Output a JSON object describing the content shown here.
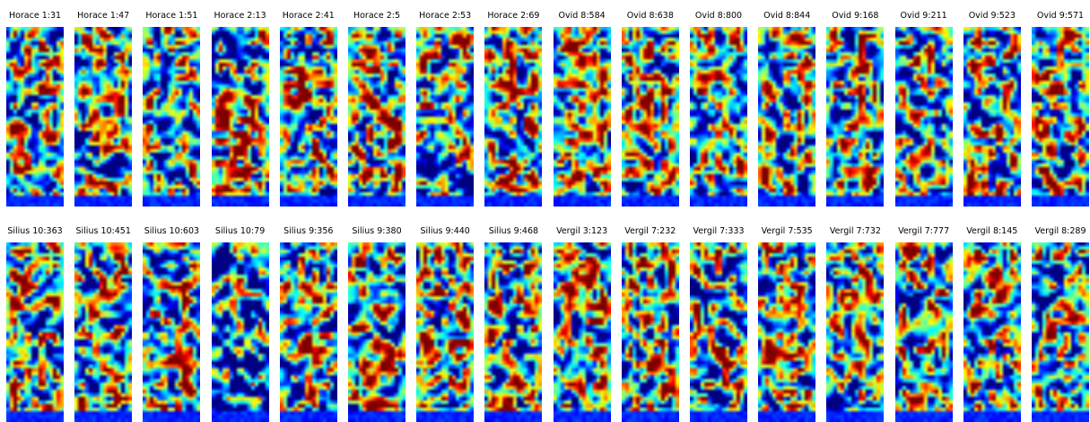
{
  "figure": {
    "colormap": "jet",
    "rows": [
      {
        "panels": [
          {
            "title": "Horace 1:31"
          },
          {
            "title": "Horace 1:47"
          },
          {
            "title": "Horace 1:51"
          },
          {
            "title": "Horace 2:13"
          },
          {
            "title": "Horace 2:41"
          },
          {
            "title": "Horace 2:5"
          },
          {
            "title": "Horace 2:53"
          },
          {
            "title": "Horace 2:69"
          },
          {
            "title": "Ovid 8:584"
          },
          {
            "title": "Ovid 8:638"
          },
          {
            "title": "Ovid 8:800"
          },
          {
            "title": "Ovid 8:844"
          },
          {
            "title": "Ovid 9:168"
          },
          {
            "title": "Ovid 9:211"
          },
          {
            "title": "Ovid 9:523"
          },
          {
            "title": "Ovid 9:571"
          }
        ]
      },
      {
        "panels": [
          {
            "title": "Silius 10:363"
          },
          {
            "title": "Silius 10:451"
          },
          {
            "title": "Silius 10:603"
          },
          {
            "title": "Silius 10:79"
          },
          {
            "title": "Silius 9:356"
          },
          {
            "title": "Silius 9:380"
          },
          {
            "title": "Silius 9:440"
          },
          {
            "title": "Silius 9:468"
          },
          {
            "title": "Vergil 3:123"
          },
          {
            "title": "Vergil 7:232"
          },
          {
            "title": "Vergil 7:333"
          },
          {
            "title": "Vergil 7:535"
          },
          {
            "title": "Vergil 7:732"
          },
          {
            "title": "Vergil 7:777"
          },
          {
            "title": "Vergil 8:145"
          },
          {
            "title": "Vergil 8:289"
          }
        ]
      }
    ]
  },
  "chart_data": {
    "type": "heatmap",
    "colormap": "jet",
    "panel_titles": [
      "Horace 1:31",
      "Horace 1:47",
      "Horace 1:51",
      "Horace 2:13",
      "Horace 2:41",
      "Horace 2:5",
      "Horace 2:53",
      "Horace 2:69",
      "Ovid 8:584",
      "Ovid 8:638",
      "Ovid 8:800",
      "Ovid 8:844",
      "Ovid 9:168",
      "Ovid 9:211",
      "Ovid 9:523",
      "Ovid 9:571",
      "Silius 10:363",
      "Silius 10:451",
      "Silius 10:603",
      "Silius 10:79",
      "Silius 9:356",
      "Silius 9:380",
      "Silius 9:440",
      "Silius 9:468",
      "Vergil 3:123",
      "Vergil 7:232",
      "Vergil 7:333",
      "Vergil 7:535",
      "Vergil 7:732",
      "Vergil 7:777",
      "Vergil 8:145",
      "Vergil 8:289"
    ],
    "grid_shape": [
      2,
      16
    ],
    "axes": "off",
    "legend": "none"
  }
}
